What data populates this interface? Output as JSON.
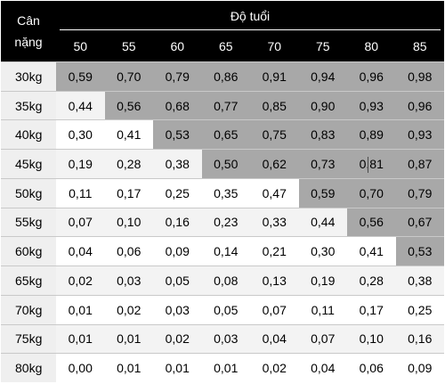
{
  "table": {
    "header": {
      "corner_line1": "Cân",
      "corner_line2": "nặng",
      "age_title": "Độ tuổi",
      "ages": [
        "50",
        "55",
        "60",
        "65",
        "70",
        "75",
        "80",
        "85"
      ]
    },
    "rows": [
      {
        "weight": "30kg",
        "values": [
          "0,59",
          "0,70",
          "0,79",
          "0,86",
          "0,91",
          "0,94",
          "0,96",
          "0,98"
        ],
        "shaded_from": 0
      },
      {
        "weight": "35kg",
        "values": [
          "0,44",
          "0,56",
          "0,68",
          "0,77",
          "0,85",
          "0,90",
          "0,93",
          "0,96"
        ],
        "shaded_from": 1
      },
      {
        "weight": "40kg",
        "values": [
          "0,30",
          "0,41",
          "0,53",
          "0,65",
          "0,75",
          "0,83",
          "0,89",
          "0,93"
        ],
        "shaded_from": 2
      },
      {
        "weight": "45kg",
        "values": [
          "0,19",
          "0,28",
          "0,38",
          "0,50",
          "0,62",
          "0,73",
          "0,81",
          "0,87"
        ],
        "shaded_from": 3
      },
      {
        "weight": "50kg",
        "values": [
          "0,11",
          "0,17",
          "0,25",
          "0,35",
          "0,47",
          "0,59",
          "0,70",
          "0,79"
        ],
        "shaded_from": 5
      },
      {
        "weight": "55kg",
        "values": [
          "0,07",
          "0,10",
          "0,16",
          "0,23",
          "0,33",
          "0,44",
          "0,56",
          "0,67"
        ],
        "shaded_from": 6
      },
      {
        "weight": "60kg",
        "values": [
          "0,04",
          "0,06",
          "0,09",
          "0,14",
          "0,21",
          "0,30",
          "0,41",
          "0,53"
        ],
        "shaded_from": 7
      },
      {
        "weight": "65kg",
        "values": [
          "0,02",
          "0,03",
          "0,05",
          "0,08",
          "0,13",
          "0,19",
          "0,28",
          "0,38"
        ],
        "shaded_from": 8
      },
      {
        "weight": "70kg",
        "values": [
          "0,01",
          "0,02",
          "0,03",
          "0,05",
          "0,07",
          "0,11",
          "0,17",
          "0,25"
        ],
        "shaded_from": 8
      },
      {
        "weight": "75kg",
        "values": [
          "0,01",
          "0,01",
          "0,02",
          "0,03",
          "0,04",
          "0,07",
          "0,10",
          "0,16"
        ],
        "shaded_from": 8
      },
      {
        "weight": "80kg",
        "values": [
          "0,00",
          "0,01",
          "0,01",
          "0,01",
          "0,02",
          "0,04",
          "0,06",
          "0,09"
        ],
        "shaded_from": 8
      }
    ]
  },
  "colors": {
    "header_bg": "#000000",
    "header_text": "#ffffff",
    "shaded_cell": "#a8a8a8",
    "weight_cell": "#efefef",
    "plain_cell": "#ffffff"
  }
}
